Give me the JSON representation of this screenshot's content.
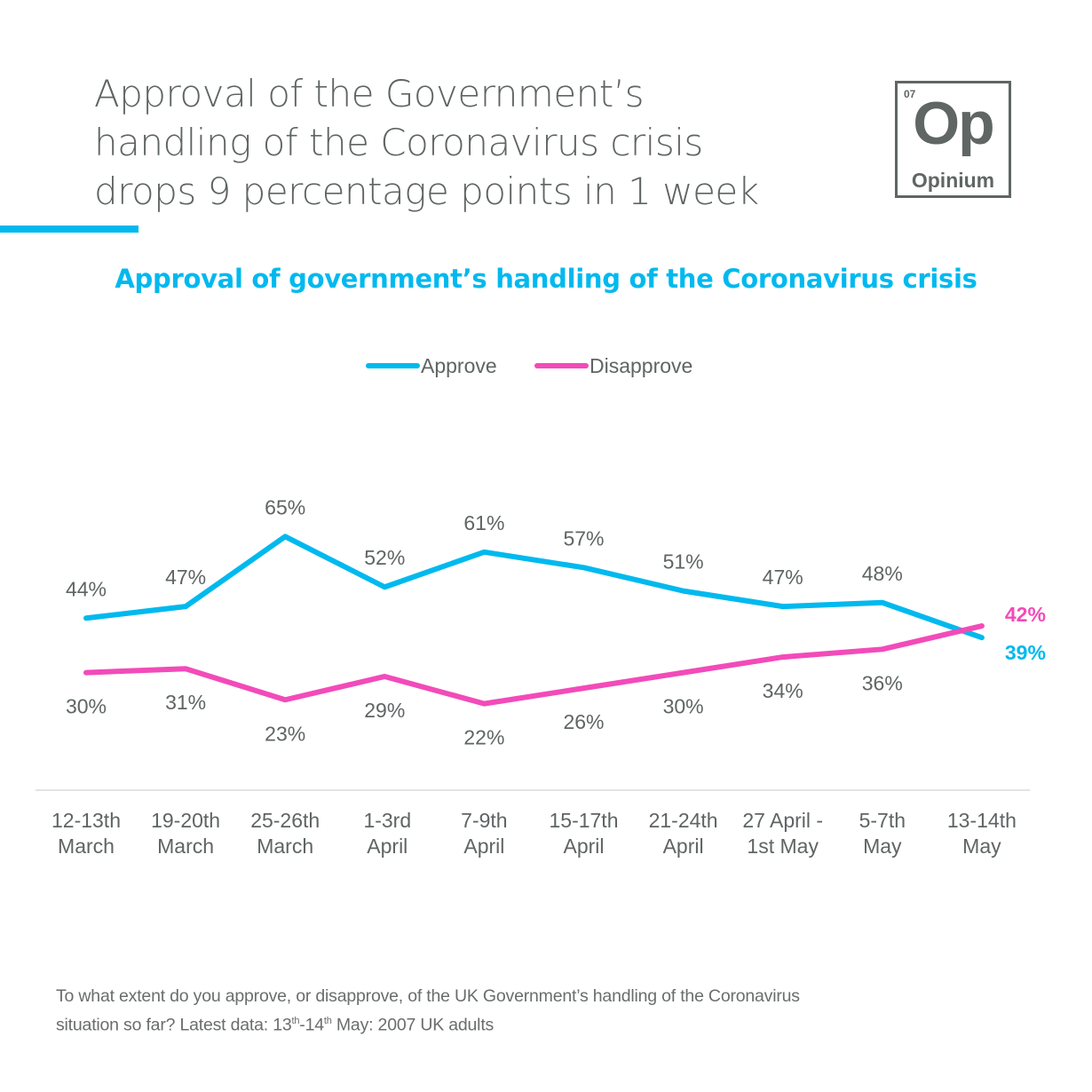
{
  "header": {
    "headline_lines": [
      "Approval of the Government’s",
      "handling of the Coronavirus crisis",
      "drops 9 percentage points in 1 week"
    ],
    "logo": {
      "number": "07",
      "symbol": "Op",
      "name": "Opinium"
    }
  },
  "colors": {
    "approve": "#00b9ee",
    "disapprove": "#f24bb9",
    "text": "#5f6464",
    "axis": "#e3e3e3"
  },
  "chart_data": {
    "type": "line",
    "title": "Approval of government’s handling of the Coronavirus crisis",
    "xlabel": "",
    "ylabel": "",
    "ylim": [
      0,
      66
    ],
    "grid": false,
    "legend_position": "top-center",
    "categories": [
      [
        "12-13th",
        "March"
      ],
      [
        "19-20th",
        "March"
      ],
      [
        "25-26th",
        "March"
      ],
      [
        "1-3rd",
        "April"
      ],
      [
        "7-9th",
        "April"
      ],
      [
        "15-17th",
        "April"
      ],
      [
        "21-24th",
        "April"
      ],
      [
        "27 April -",
        "1st May"
      ],
      [
        "5-7th",
        "May"
      ],
      [
        "13-14th",
        "May"
      ]
    ],
    "series": [
      {
        "name": "Approve",
        "color": "#00b9ee",
        "values": [
          44,
          47,
          65,
          52,
          61,
          57,
          51,
          47,
          48,
          39
        ],
        "labels": [
          "44%",
          "47%",
          "65%",
          "52%",
          "61%",
          "57%",
          "51%",
          "47%",
          "48%",
          "39%"
        ]
      },
      {
        "name": "Disapprove",
        "color": "#f24bb9",
        "values": [
          30,
          31,
          23,
          29,
          22,
          26,
          30,
          34,
          36,
          42
        ],
        "labels": [
          "30%",
          "31%",
          "23%",
          "29%",
          "22%",
          "26%",
          "30%",
          "34%",
          "36%",
          "42%"
        ]
      }
    ]
  },
  "footnote": {
    "line1": "To what extent do you approve, or disapprove, of the UK Government’s handling of the Coronavirus",
    "line2_pre": "situation so far? Latest data: 13",
    "sup1": "th",
    "mid": "-14",
    "sup2": "th",
    "line2_post": " May: 2007 UK adults"
  }
}
